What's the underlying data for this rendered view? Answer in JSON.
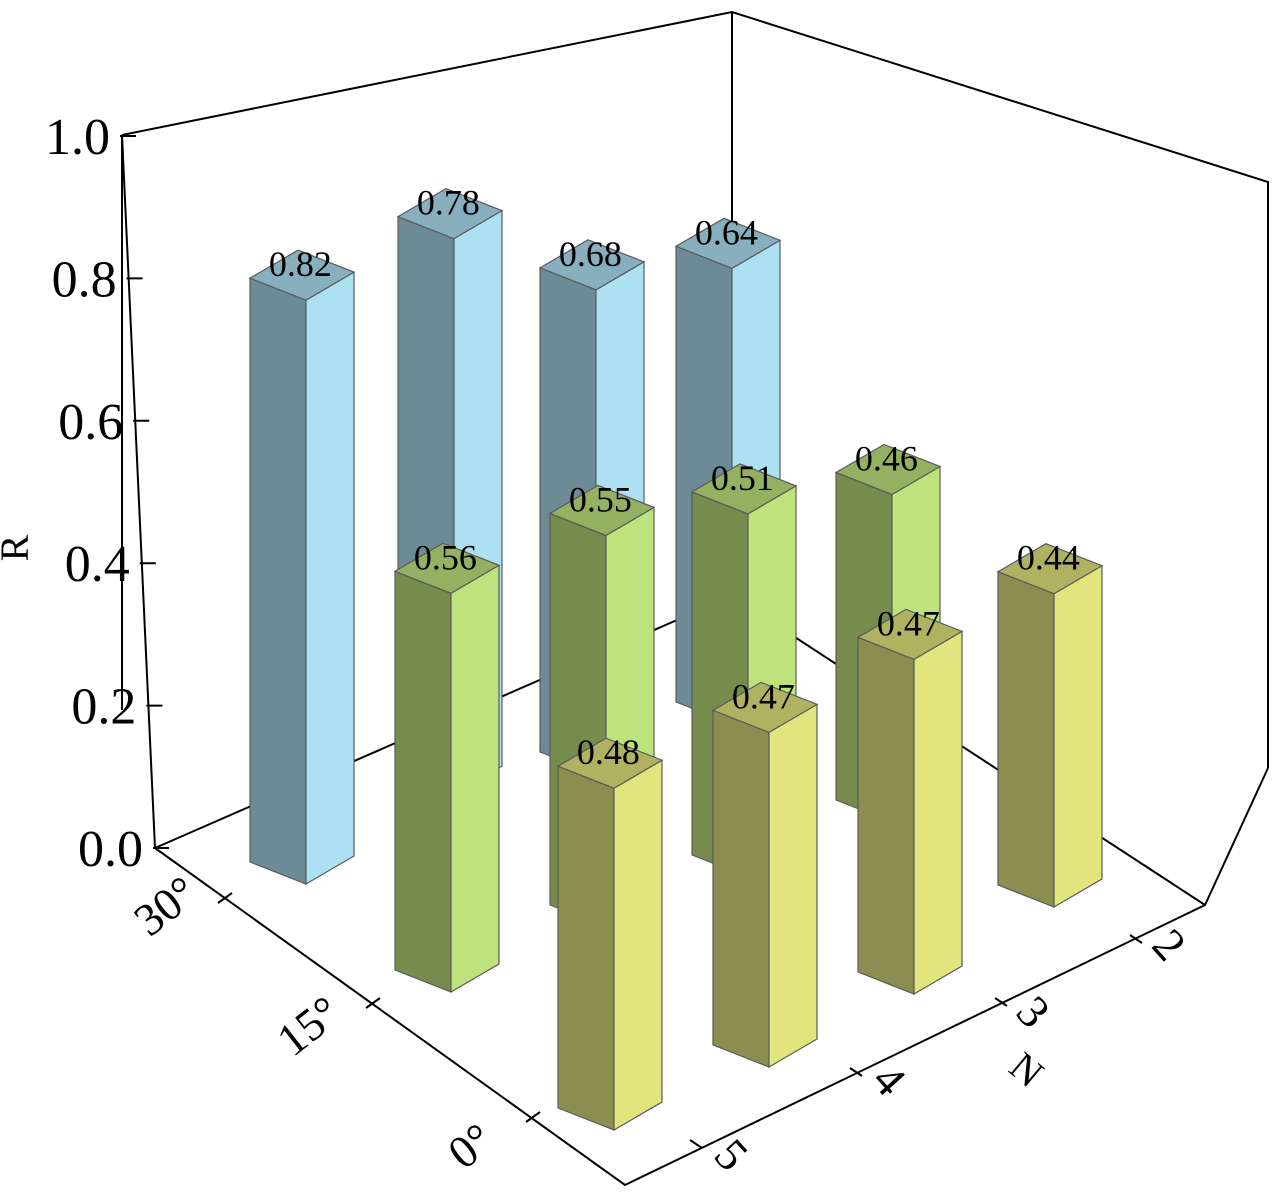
{
  "chart_data": {
    "type": "bar",
    "variant": "3d-grouped",
    "ylabel": "R",
    "xlabel": "N",
    "ylim": [
      0.0,
      1.0
    ],
    "yticks": [
      "0.0",
      "0.2",
      "0.4",
      "0.6",
      "0.8",
      "1.0"
    ],
    "categories": [
      "2",
      "3",
      "4",
      "5"
    ],
    "series": [
      {
        "name": "30°",
        "color": "#aee0f4",
        "values": [
          0.64,
          0.68,
          0.78,
          0.82
        ],
        "labels": [
          "0.64",
          "0.68",
          "0.78",
          "0.82"
        ]
      },
      {
        "name": "15°",
        "color": "#bee27c",
        "values": [
          0.46,
          0.51,
          0.55,
          0.56
        ],
        "labels": [
          "0.46",
          "0.51",
          "0.55",
          "0.56"
        ]
      },
      {
        "name": "0°",
        "color": "#e2e47e",
        "values": [
          0.44,
          0.47,
          0.47,
          0.48
        ],
        "labels": [
          "0.44",
          "0.47",
          "0.47",
          "0.48"
        ]
      }
    ]
  }
}
